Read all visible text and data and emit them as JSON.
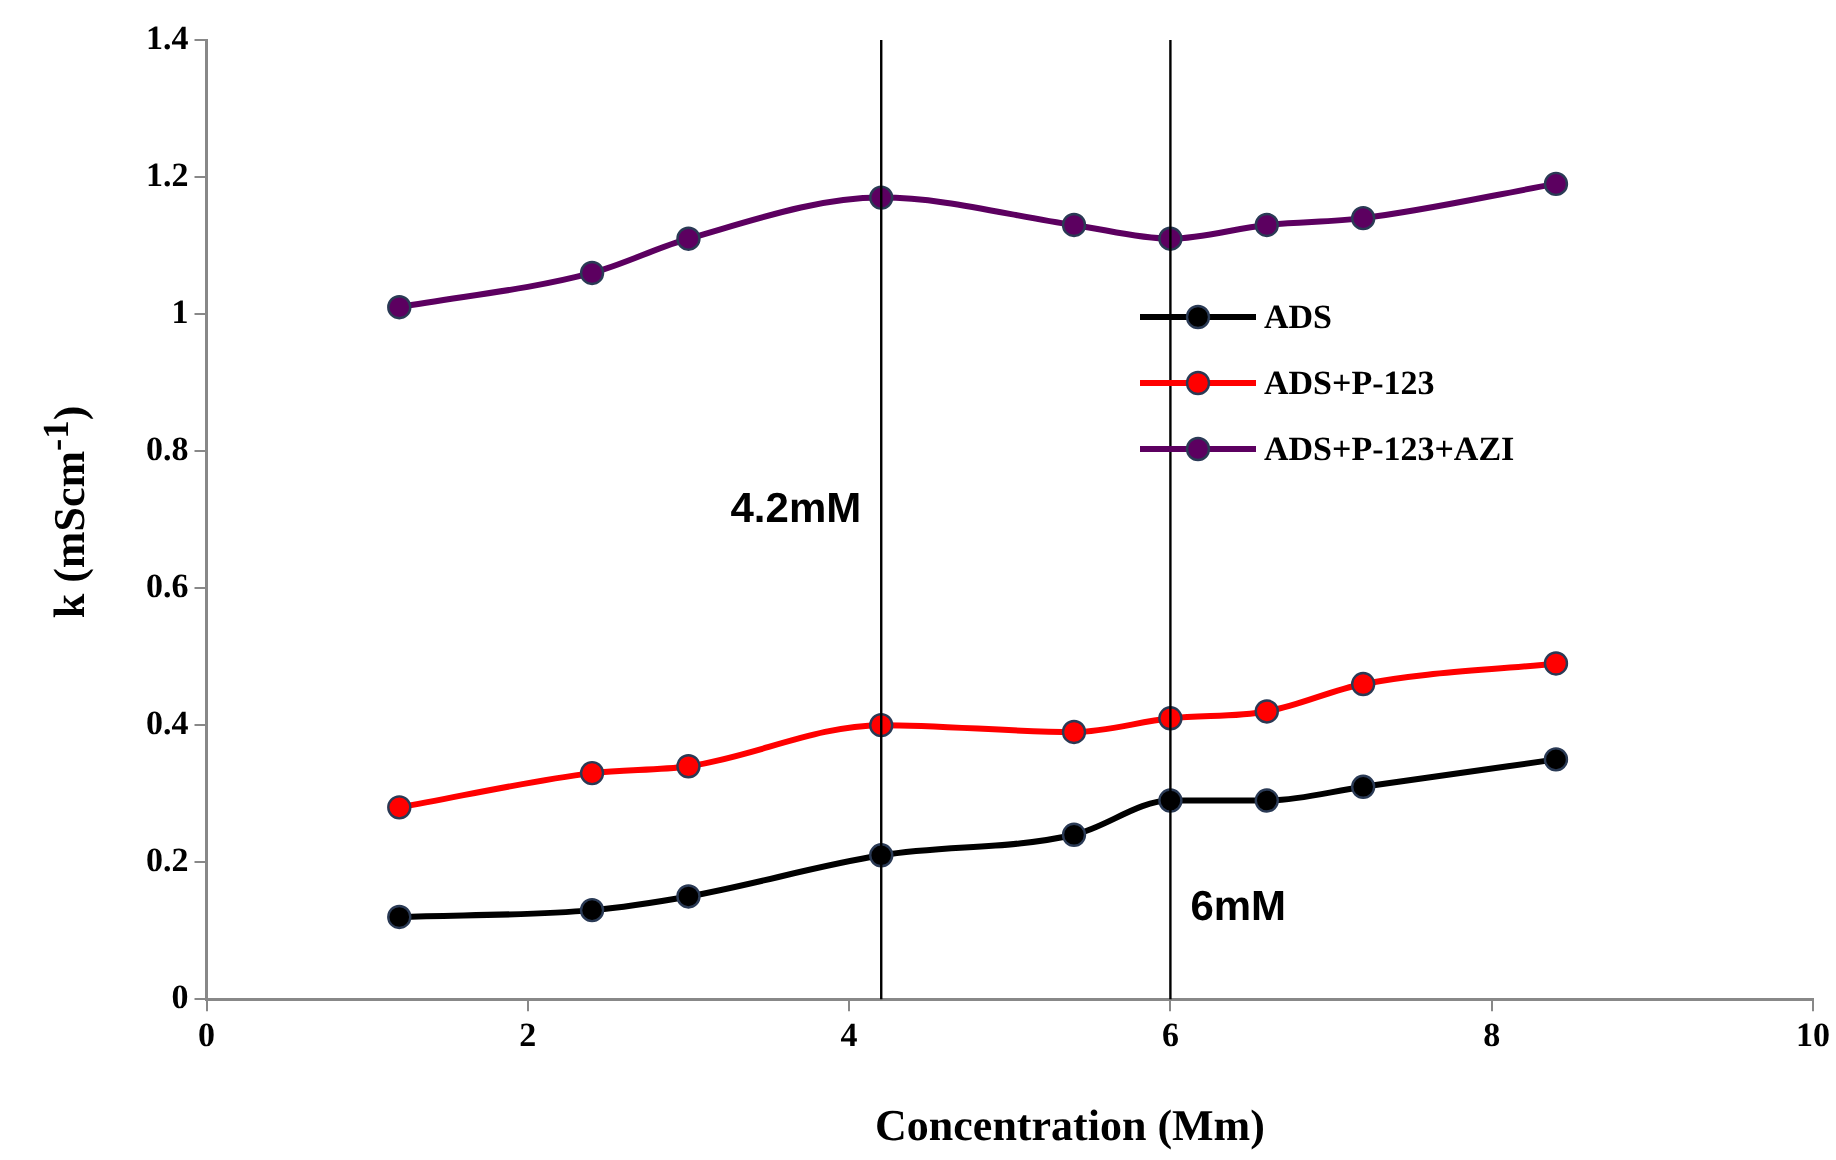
{
  "chart_data": {
    "type": "line",
    "xlabel": "Concentration (Mm)",
    "ylabel": "k (mScm$^{-1}$)",
    "xlim": [
      0,
      10
    ],
    "xticks": [
      0,
      2,
      4,
      6,
      8,
      10
    ],
    "ylim": [
      0,
      1.4
    ],
    "yticks": [
      0,
      0.2,
      0.4,
      0.6,
      0.8,
      1,
      1.2,
      1.4
    ],
    "grid": false,
    "legend": "right",
    "marker": "circle",
    "line_style": "solid",
    "series": [
      {
        "name": "ADS",
        "color": "#000000",
        "x": [
          1.2,
          2.4,
          3,
          4.2,
          5.4,
          6,
          6.6,
          7.2,
          8.4
        ],
        "values": [
          0.12,
          0.13,
          0.15,
          0.21,
          0.24,
          0.29,
          0.29,
          0.31,
          0.35
        ]
      },
      {
        "name": "ADS+P-123",
        "color": "#ff0000",
        "x": [
          1.2,
          2.4,
          3,
          4.2,
          5.4,
          6,
          6.6,
          7.2,
          8.4
        ],
        "values": [
          0.28,
          0.33,
          0.34,
          0.4,
          0.39,
          0.41,
          0.42,
          0.46,
          0.49
        ]
      },
      {
        "name": "ADS+P-123+AZI",
        "color": "#5c0060",
        "x": [
          1.2,
          2.4,
          3,
          4.2,
          5.4,
          6,
          6.6,
          7.2,
          8.4
        ],
        "values": [
          1.01,
          1.06,
          1.11,
          1.17,
          1.13,
          1.11,
          1.13,
          1.14,
          1.19
        ]
      }
    ],
    "ref_lines": [
      {
        "axis": "x",
        "value": 4.2,
        "color": "#000000",
        "label": "4.2mM"
      },
      {
        "axis": "x",
        "value": 6,
        "color": "#000000",
        "label": "6mM"
      }
    ]
  }
}
